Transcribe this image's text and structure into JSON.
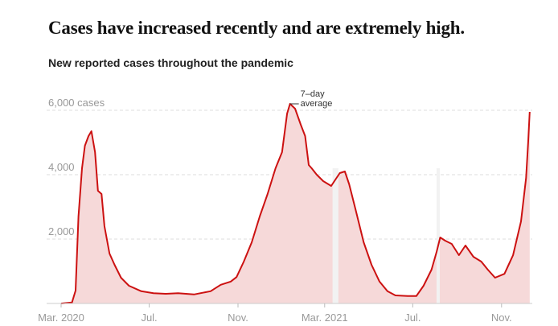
{
  "title": "Cases have increased recently and are extremely high.",
  "subtitle": "New reported cases throughout the pandemic",
  "chart_data": {
    "type": "area",
    "title": "",
    "xlabel": "",
    "ylabel": "",
    "ylim": [
      0,
      6000
    ],
    "y_ticks": [
      {
        "value": 6000,
        "label": "6,000 cases"
      },
      {
        "value": 4000,
        "label": "4,000"
      },
      {
        "value": 2000,
        "label": "2,000"
      }
    ],
    "x_ticks": [
      {
        "date": "2020-03-01",
        "label": "Mar. 2020"
      },
      {
        "date": "2020-07-01",
        "label": "Jul."
      },
      {
        "date": "2020-11-01",
        "label": "Nov."
      },
      {
        "date": "2021-03-01",
        "label": "Mar. 2021"
      },
      {
        "date": "2021-07-01",
        "label": "Jul."
      },
      {
        "date": "2021-11-01",
        "label": "Nov."
      }
    ],
    "grid": "horizontal dashed",
    "annotation": {
      "text_line1": "7–day",
      "text_line2": "average",
      "date": "2021-01-12",
      "value": 6200
    },
    "colors": {
      "line": "#cc1111",
      "fill": "#f6d9d9",
      "grid": "#dddddd",
      "gap": "#f2f2f2"
    },
    "gaps": [
      [
        "2021-03-12",
        "2021-03-20"
      ],
      [
        "2021-08-03",
        "2021-08-07"
      ]
    ],
    "series": [
      {
        "points": [
          [
            "2020-03-01",
            0
          ],
          [
            "2020-03-16",
            30
          ],
          [
            "2020-03-21",
            400
          ],
          [
            "2020-03-25",
            2700
          ],
          [
            "2020-03-30",
            4200
          ],
          [
            "2020-04-03",
            4900
          ],
          [
            "2020-04-08",
            5200
          ],
          [
            "2020-04-12",
            5350
          ],
          [
            "2020-04-17",
            4700
          ],
          [
            "2020-04-21",
            3500
          ],
          [
            "2020-04-26",
            3400
          ],
          [
            "2020-04-30",
            2400
          ],
          [
            "2020-05-07",
            1550
          ],
          [
            "2020-05-14",
            1200
          ],
          [
            "2020-05-23",
            800
          ],
          [
            "2020-06-03",
            550
          ],
          [
            "2020-06-20",
            380
          ],
          [
            "2020-07-07",
            320
          ],
          [
            "2020-07-24",
            300
          ],
          [
            "2020-08-10",
            320
          ],
          [
            "2020-09-01",
            280
          ],
          [
            "2020-09-24",
            380
          ],
          [
            "2020-10-08",
            580
          ],
          [
            "2020-10-22",
            680
          ],
          [
            "2020-10-30",
            820
          ],
          [
            "2020-11-09",
            1300
          ],
          [
            "2020-11-20",
            1900
          ],
          [
            "2020-12-01",
            2700
          ],
          [
            "2020-12-12",
            3400
          ],
          [
            "2020-12-23",
            4200
          ],
          [
            "2021-01-01",
            4700
          ],
          [
            "2021-01-08",
            5900
          ],
          [
            "2021-01-12",
            6200
          ],
          [
            "2021-01-19",
            6050
          ],
          [
            "2021-01-27",
            5550
          ],
          [
            "2021-02-02",
            5200
          ],
          [
            "2021-02-07",
            4300
          ],
          [
            "2021-02-11",
            4200
          ],
          [
            "2021-02-18",
            4000
          ],
          [
            "2021-02-27",
            3800
          ],
          [
            "2021-03-10",
            3650
          ],
          [
            "2021-03-22",
            4050
          ],
          [
            "2021-03-29",
            4100
          ],
          [
            "2021-04-04",
            3700
          ],
          [
            "2021-04-13",
            2900
          ],
          [
            "2021-04-24",
            1900
          ],
          [
            "2021-05-05",
            1200
          ],
          [
            "2021-05-16",
            680
          ],
          [
            "2021-05-27",
            380
          ],
          [
            "2021-06-07",
            250
          ],
          [
            "2021-06-24",
            230
          ],
          [
            "2021-07-06",
            230
          ],
          [
            "2021-07-16",
            550
          ],
          [
            "2021-07-27",
            1050
          ],
          [
            "2021-08-03",
            1600
          ],
          [
            "2021-08-08",
            2050
          ],
          [
            "2021-08-15",
            1950
          ],
          [
            "2021-08-24",
            1850
          ],
          [
            "2021-09-03",
            1500
          ],
          [
            "2021-09-12",
            1800
          ],
          [
            "2021-09-23",
            1450
          ],
          [
            "2021-10-04",
            1300
          ],
          [
            "2021-10-13",
            1050
          ],
          [
            "2021-10-23",
            800
          ],
          [
            "2021-11-05",
            920
          ],
          [
            "2021-11-17",
            1500
          ],
          [
            "2021-11-28",
            2550
          ],
          [
            "2021-12-05",
            3900
          ],
          [
            "2021-12-08",
            5050
          ],
          [
            "2021-12-10",
            5950
          ]
        ]
      }
    ]
  }
}
